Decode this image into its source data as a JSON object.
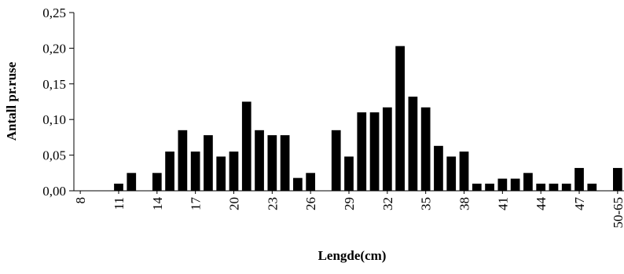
{
  "chart_data": {
    "type": "bar",
    "xlabel": "Lengde(cm)",
    "ylabel": "Antall pr.ruse",
    "ylim": [
      0,
      0.25
    ],
    "y_ticks": [
      "0,00",
      "0,05",
      "0,10",
      "0,15",
      "0,20",
      "0,25"
    ],
    "x_tick_labels": [
      "8",
      "11",
      "14",
      "17",
      "20",
      "23",
      "26",
      "29",
      "32",
      "35",
      "38",
      "41",
      "44",
      "47",
      "50-65"
    ],
    "grid": false,
    "legend": "none",
    "bar_color": "#000000",
    "categories": [
      "8",
      "9",
      "10",
      "11",
      "12",
      "13",
      "14",
      "15",
      "16",
      "17",
      "18",
      "19",
      "20",
      "21",
      "22",
      "23",
      "24",
      "25",
      "26",
      "27",
      "28",
      "29",
      "30",
      "31",
      "32",
      "33",
      "34",
      "35",
      "36",
      "37",
      "38",
      "39",
      "40",
      "41",
      "42",
      "43",
      "44",
      "45",
      "46",
      "47",
      "48",
      "49",
      "50-65"
    ],
    "values": [
      0,
      0,
      0,
      0.01,
      0.025,
      0,
      0.025,
      0.055,
      0.085,
      0.055,
      0.078,
      0.048,
      0.055,
      0.125,
      0.085,
      0.078,
      0.078,
      0.018,
      0.025,
      0,
      0.085,
      0.048,
      0.11,
      0.11,
      0.117,
      0.203,
      0.132,
      0.117,
      0.063,
      0.048,
      0.055,
      0.01,
      0.01,
      0.017,
      0.017,
      0.025,
      0.01,
      0.01,
      0.01,
      0.032,
      0.01,
      0,
      0.032
    ]
  }
}
